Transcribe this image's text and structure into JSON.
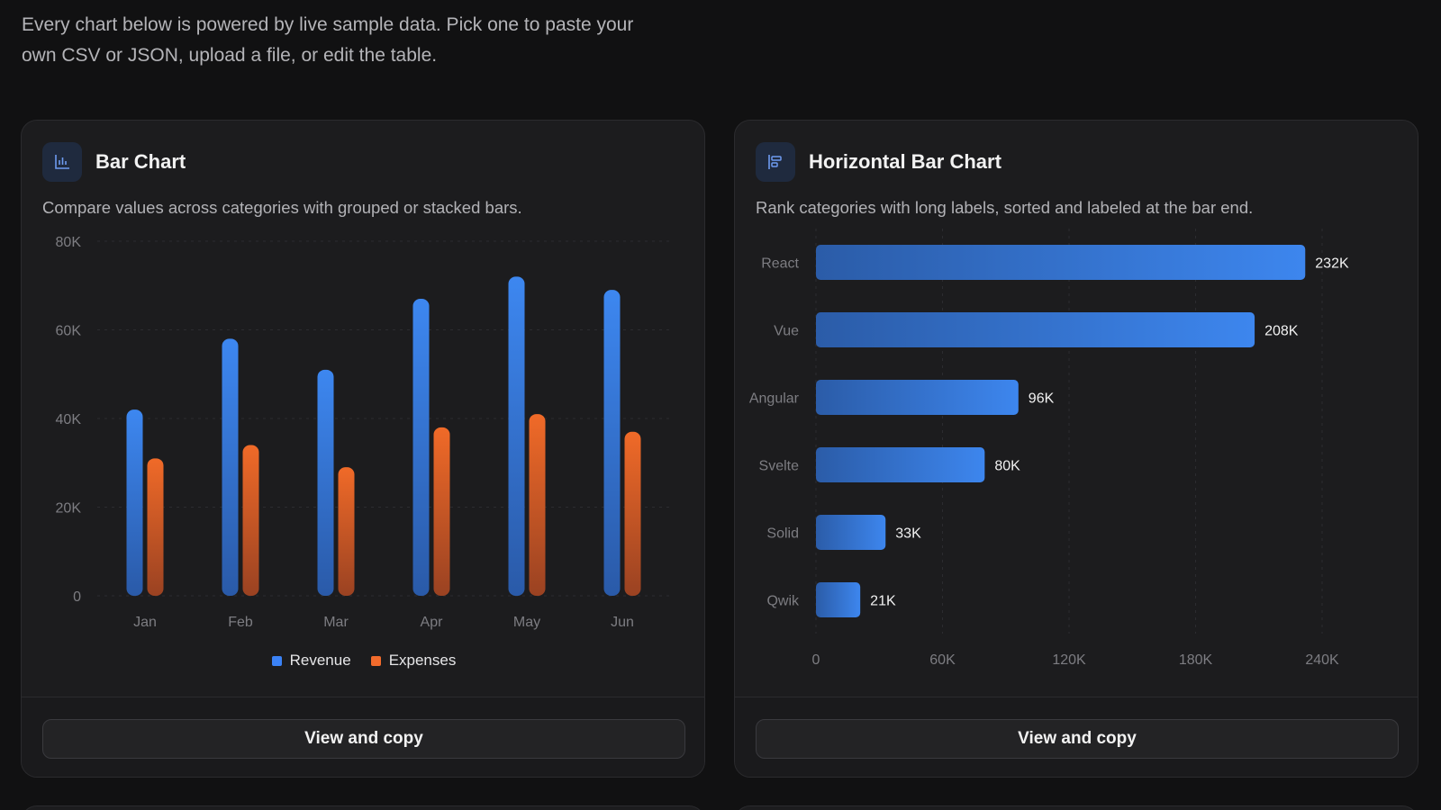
{
  "intro": "Every chart below is powered by live sample data. Pick one to paste your own CSV or JSON, upload a file, or edit the table.",
  "colors": {
    "revenue": "#3b82f6",
    "expenses": "#f26b2c",
    "hbar": "#3b82f6"
  },
  "cards": [
    {
      "title": "Bar Chart",
      "description": "Compare values across categories with grouped or stacked bars.",
      "icon": "bar-chart-icon",
      "button": "View and copy"
    },
    {
      "title": "Horizontal Bar Chart",
      "description": "Rank categories with long labels, sorted and labeled at the bar end.",
      "icon": "horizontal-bar-chart-icon",
      "button": "View and copy"
    }
  ],
  "chart_data": [
    {
      "type": "bar",
      "categories": [
        "Jan",
        "Feb",
        "Mar",
        "Apr",
        "May",
        "Jun"
      ],
      "series": [
        {
          "name": "Revenue",
          "values": [
            42000,
            58000,
            51000,
            67000,
            72000,
            69000
          ]
        },
        {
          "name": "Expenses",
          "values": [
            31000,
            34000,
            29000,
            38000,
            41000,
            37000
          ]
        }
      ],
      "ylim": [
        0,
        80000
      ],
      "yticks": [
        "0",
        "20K",
        "40K",
        "60K",
        "80K"
      ],
      "grid": true,
      "legend": "bottom-center"
    },
    {
      "type": "bar",
      "orientation": "horizontal",
      "categories": [
        "React",
        "Vue",
        "Angular",
        "Svelte",
        "Solid",
        "Qwik"
      ],
      "values": [
        232000,
        208000,
        96000,
        80000,
        33000,
        21000
      ],
      "labels": [
        "232K",
        "208K",
        "96K",
        "80K",
        "33K",
        "21K"
      ],
      "xlim": [
        0,
        240000
      ],
      "xticks": [
        "0",
        "60K",
        "120K",
        "180K",
        "240K"
      ],
      "grid": true
    }
  ]
}
